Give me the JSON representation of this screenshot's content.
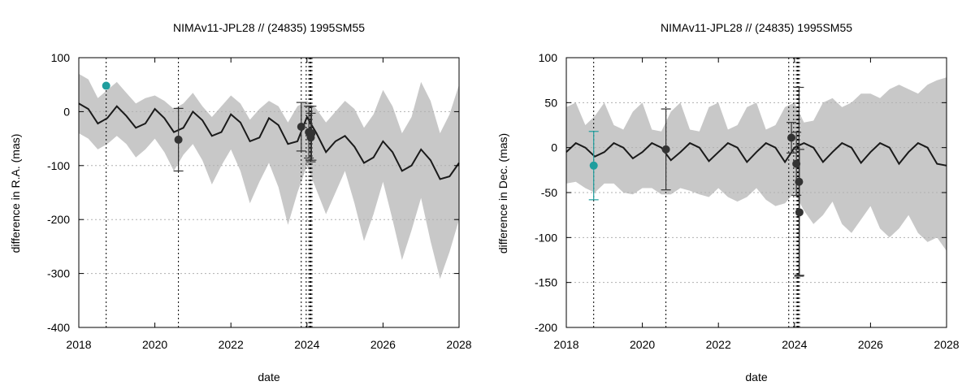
{
  "chart_data": [
    {
      "type": "line",
      "title": "NIMAv11-JPL28 // (24835) 1995SM55",
      "xlabel": "date",
      "ylabel": "difference in R.A. (mas)",
      "xlim": [
        2018,
        2028
      ],
      "ylim": [
        -400,
        100
      ],
      "xticks": [
        2018,
        2020,
        2022,
        2024,
        2026,
        2028
      ],
      "yticks": [
        -400,
        -300,
        -200,
        -100,
        0,
        100
      ],
      "grid": true,
      "colors": {
        "band": "#c8c8c8",
        "curve": "#1a1a1a",
        "observation": "#333333",
        "highlight": "#1f9e9e",
        "grid": "#b0b0b0"
      },
      "observation_dates": [
        18.72,
        20.62,
        23.85,
        23.98,
        24.05,
        24.08,
        24.1,
        24.13
      ],
      "mean_curve": {
        "x": [
          2018,
          2018.25,
          2018.5,
          2018.75,
          2019,
          2019.25,
          2019.5,
          2019.75,
          2020,
          2020.25,
          2020.5,
          2020.75,
          2021,
          2021.25,
          2021.5,
          2021.75,
          2022,
          2022.25,
          2022.5,
          2022.75,
          2023,
          2023.25,
          2023.5,
          2023.75,
          2024,
          2024.25,
          2024.5,
          2024.75,
          2025,
          2025.25,
          2025.5,
          2025.75,
          2026,
          2026.25,
          2026.5,
          2026.75,
          2027,
          2027.25,
          2027.5,
          2027.75,
          2028
        ],
        "y": [
          15,
          5,
          -22,
          -12,
          10,
          -8,
          -30,
          -22,
          5,
          -12,
          -38,
          -30,
          0,
          -16,
          -45,
          -38,
          -5,
          -20,
          -55,
          -48,
          -12,
          -25,
          -60,
          -55,
          -10,
          -40,
          -75,
          -55,
          -45,
          -65,
          -95,
          -85,
          -55,
          -75,
          -110,
          -100,
          -70,
          -90,
          -125,
          -120,
          -95
        ]
      },
      "uncertainty_band": {
        "x": [
          2018,
          2018.25,
          2018.5,
          2018.75,
          2019,
          2019.25,
          2019.5,
          2019.75,
          2020,
          2020.25,
          2020.5,
          2020.75,
          2021,
          2021.25,
          2021.5,
          2021.75,
          2022,
          2022.25,
          2022.5,
          2022.75,
          2023,
          2023.25,
          2023.5,
          2023.75,
          2024,
          2024.25,
          2024.5,
          2024.75,
          2025,
          2025.25,
          2025.5,
          2025.75,
          2026,
          2026.25,
          2026.5,
          2026.75,
          2027,
          2027.25,
          2027.5,
          2027.75,
          2028
        ],
        "upper": [
          70,
          60,
          25,
          40,
          55,
          35,
          15,
          25,
          30,
          20,
          5,
          15,
          35,
          10,
          -10,
          10,
          30,
          15,
          -15,
          5,
          20,
          10,
          -20,
          10,
          20,
          5,
          -20,
          0,
          20,
          5,
          -30,
          -5,
          40,
          10,
          -40,
          -10,
          55,
          20,
          -40,
          -5,
          50
        ],
        "lower": [
          -40,
          -50,
          -70,
          -60,
          -45,
          -60,
          -85,
          -70,
          -50,
          -75,
          -110,
          -80,
          -60,
          -90,
          -135,
          -100,
          -70,
          -110,
          -170,
          -130,
          -95,
          -140,
          -210,
          -150,
          -100,
          -145,
          -190,
          -150,
          -110,
          -170,
          -240,
          -190,
          -130,
          -200,
          -275,
          -220,
          -160,
          -240,
          -310,
          -260,
          -200
        ]
      },
      "observations": [
        {
          "x": 2018.72,
          "y": 48,
          "err": 0,
          "highlight": true
        },
        {
          "x": 2020.62,
          "y": -52,
          "err": 58
        },
        {
          "x": 2023.85,
          "y": -28,
          "err": 45
        },
        {
          "x": 2024.05,
          "y": -38,
          "err": 48
        },
        {
          "x": 2024.1,
          "y": -48,
          "err": 45
        },
        {
          "x": 2024.12,
          "y": -40,
          "err": 50
        }
      ]
    },
    {
      "type": "line",
      "title": "NIMAv11-JPL28 // (24835) 1995SM55",
      "xlabel": "date",
      "ylabel": "difference in Dec. (mas)",
      "xlim": [
        2018,
        2028
      ],
      "ylim": [
        -200,
        100
      ],
      "xticks": [
        2018,
        2020,
        2022,
        2024,
        2026,
        2028
      ],
      "yticks": [
        -200,
        -150,
        -100,
        -50,
        0,
        50,
        100
      ],
      "grid": true,
      "colors": {
        "band": "#c8c8c8",
        "curve": "#1a1a1a",
        "observation": "#333333",
        "highlight": "#1f9e9e",
        "grid": "#b0b0b0"
      },
      "observation_dates": [
        18.72,
        20.62,
        23.85,
        23.98,
        24.05,
        24.08,
        24.1,
        24.13
      ],
      "mean_curve": {
        "x": [
          2018,
          2018.25,
          2018.5,
          2018.75,
          2019,
          2019.25,
          2019.5,
          2019.75,
          2020,
          2020.25,
          2020.5,
          2020.75,
          2021,
          2021.25,
          2021.5,
          2021.75,
          2022,
          2022.25,
          2022.5,
          2022.75,
          2023,
          2023.25,
          2023.5,
          2023.75,
          2024,
          2024.25,
          2024.5,
          2024.75,
          2025,
          2025.25,
          2025.5,
          2025.75,
          2026,
          2026.25,
          2026.5,
          2026.75,
          2027,
          2027.25,
          2027.5,
          2027.75,
          2028
        ],
        "y": [
          -5,
          5,
          0,
          -10,
          -5,
          5,
          0,
          -12,
          -5,
          5,
          0,
          -14,
          -5,
          5,
          0,
          -15,
          -5,
          5,
          0,
          -16,
          -5,
          5,
          0,
          -16,
          0,
          5,
          0,
          -16,
          -5,
          5,
          0,
          -17,
          -5,
          5,
          0,
          -18,
          -5,
          5,
          0,
          -18,
          -20
        ]
      },
      "uncertainty_band": {
        "x": [
          2018,
          2018.25,
          2018.5,
          2018.75,
          2019,
          2019.25,
          2019.5,
          2019.75,
          2020,
          2020.25,
          2020.5,
          2020.75,
          2021,
          2021.25,
          2021.5,
          2021.75,
          2022,
          2022.25,
          2022.5,
          2022.75,
          2023,
          2023.25,
          2023.5,
          2023.75,
          2024,
          2024.25,
          2024.5,
          2024.75,
          2025,
          2025.25,
          2025.5,
          2025.75,
          2026,
          2026.25,
          2026.5,
          2026.75,
          2027,
          2027.25,
          2027.5,
          2027.75,
          2028
        ],
        "upper": [
          45,
          50,
          25,
          35,
          50,
          25,
          20,
          40,
          50,
          20,
          18,
          40,
          50,
          20,
          18,
          45,
          50,
          20,
          25,
          45,
          50,
          20,
          25,
          45,
          50,
          28,
          30,
          50,
          55,
          45,
          50,
          60,
          60,
          55,
          65,
          70,
          65,
          60,
          70,
          75,
          78
        ],
        "lower": [
          -40,
          -38,
          -45,
          -50,
          -40,
          -40,
          -50,
          -52,
          -45,
          -45,
          -52,
          -52,
          -45,
          -48,
          -52,
          -55,
          -45,
          -55,
          -60,
          -55,
          -45,
          -58,
          -65,
          -62,
          -50,
          -70,
          -85,
          -75,
          -60,
          -85,
          -95,
          -80,
          -65,
          -90,
          -100,
          -90,
          -75,
          -95,
          -105,
          -100,
          -115
        ]
      },
      "observations": [
        {
          "x": 2018.72,
          "y": -20,
          "err": 38,
          "highlight": true
        },
        {
          "x": 2020.62,
          "y": -2,
          "err": 45
        },
        {
          "x": 2023.92,
          "y": 11,
          "err": 17
        },
        {
          "x": 2024.05,
          "y": -18,
          "err": 35
        },
        {
          "x": 2024.12,
          "y": -38,
          "err": 105
        },
        {
          "x": 2024.13,
          "y": -72,
          "err": 70
        }
      ]
    }
  ]
}
